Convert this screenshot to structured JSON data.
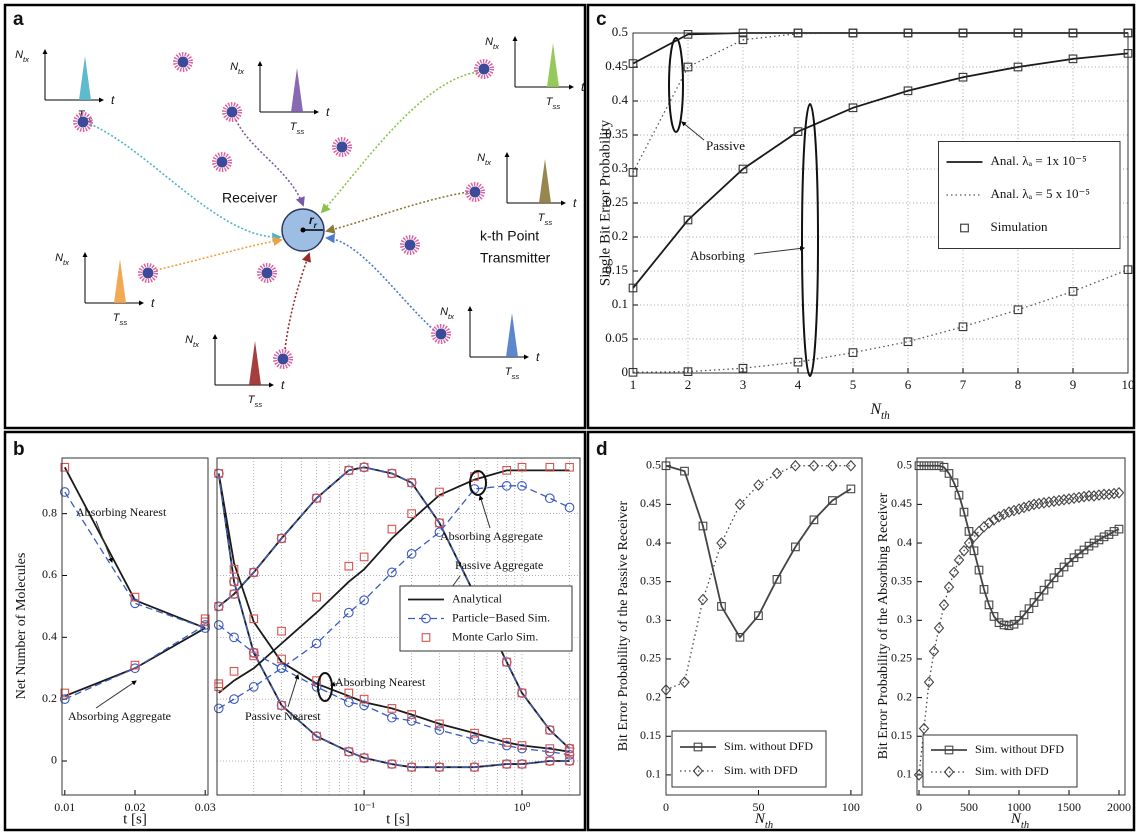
{
  "panel_labels": [
    "a",
    "b",
    "c",
    "d"
  ],
  "diagram": {
    "receiver": "Receiver",
    "radius": {
      "text": "r",
      "sub": "r"
    },
    "transmitter_label": [
      "k-th Point",
      "Transmitter"
    ],
    "transmitters": [
      {
        "color": "#4fb3c8",
        "y_label": {
          "text": "N",
          "sub": "tx"
        },
        "pulse_label": {
          "text": "T",
          "sub": "ss"
        },
        "axis_label": "t"
      },
      {
        "color": "#7a5aa8",
        "y_label": {
          "text": "N",
          "sub": "tx"
        },
        "pulse_label": {
          "text": "T",
          "sub": "ss"
        },
        "axis_label": "t"
      },
      {
        "color": "#8bc34a",
        "y_label": {
          "text": "N",
          "sub": "tx"
        },
        "pulse_label": {
          "text": "T",
          "sub": "ss"
        },
        "axis_label": "t"
      },
      {
        "color": "#8a7a3a",
        "y_label": {
          "text": "N",
          "sub": "tx"
        },
        "pulse_label": {
          "text": "T",
          "sub": "ss"
        },
        "axis_label": "t"
      },
      {
        "color": "#f0a040",
        "y_label": {
          "text": "N",
          "sub": "tx"
        },
        "pulse_label": {
          "text": "T",
          "sub": "ss"
        },
        "axis_label": "t"
      },
      {
        "color": "#9b2a2a",
        "y_label": {
          "text": "N",
          "sub": "tx"
        },
        "pulse_label": {
          "text": "T",
          "sub": "ss"
        },
        "axis_label": "t"
      },
      {
        "color": "#4a7ac8",
        "y_label": {
          "text": "N",
          "sub": "tx"
        },
        "pulse_label": {
          "text": "T",
          "sub": "ss"
        },
        "axis_label": "t"
      }
    ]
  },
  "chart_data": [
    {
      "type": "line",
      "ylabel": "Single Bit Error Probability",
      "xlabel": {
        "text": "N",
        "sub": "th"
      },
      "xlim": [
        1,
        10
      ],
      "ylim": [
        0,
        0.5
      ],
      "xticks": [
        1,
        2,
        3,
        4,
        5,
        6,
        7,
        8,
        9,
        10
      ],
      "yticks": [
        0,
        0.05,
        0.1,
        0.15,
        0.2,
        0.25,
        0.3,
        0.35,
        0.4,
        0.45,
        0.5
      ],
      "grid": true,
      "legend": "center right",
      "x": [
        1,
        2,
        3,
        4,
        5,
        6,
        7,
        8,
        9,
        10
      ],
      "series": [
        {
          "name": "Anal. λₐ = 1x 10⁻⁵",
          "color": "#1a1a1a",
          "style": "solid",
          "marker": "none",
          "lines": [
            [
              0.455,
              0.498,
              0.5,
              0.5,
              0.5,
              0.5,
              0.5,
              0.5,
              0.5,
              0.5
            ],
            [
              0.125,
              0.225,
              0.3,
              0.355,
              0.39,
              0.415,
              0.435,
              0.45,
              0.462,
              0.47
            ]
          ]
        },
        {
          "name": "Anal. λₐ = 5 x 10⁻⁵",
          "color": "#555555",
          "style": "dotted",
          "marker": "none",
          "lines": [
            [
              0.295,
              0.45,
              0.49,
              0.499,
              0.5,
              0.5,
              0.5,
              0.5,
              0.5,
              0.5
            ],
            [
              0.001,
              0.002,
              0.007,
              0.016,
              0.03,
              0.046,
              0.068,
              0.093,
              0.12,
              0.152
            ]
          ]
        },
        {
          "name": "Simulation",
          "color": "#333333",
          "style": "none",
          "marker": "square",
          "lines": [
            [
              0.455,
              0.498,
              0.5,
              0.5,
              0.5,
              0.5,
              0.5,
              0.5,
              0.5,
              0.5
            ],
            [
              0.125,
              0.225,
              0.3,
              0.355,
              0.39,
              0.415,
              0.435,
              0.45,
              0.462,
              0.47
            ],
            [
              0.295,
              0.45,
              0.49,
              0.5,
              0.5,
              0.5,
              0.5,
              0.5,
              0.5,
              0.5
            ],
            [
              0.001,
              0.002,
              0.007,
              0.016,
              0.03,
              0.046,
              0.068,
              0.093,
              0.12,
              0.152
            ]
          ]
        }
      ],
      "annotations": [
        "Passive",
        "Absorbing"
      ]
    },
    {
      "type": "line",
      "ylabel": "Net Number of  Molecules",
      "xlabel": "t [s]",
      "xlim": [
        0.0096,
        0.0304
      ],
      "ylim": [
        -0.11,
        0.98
      ],
      "xticks": [
        0.01,
        0.02,
        0.03
      ],
      "yticks": [
        0,
        0.2,
        0.4,
        0.6,
        0.8
      ],
      "grid": false,
      "x": [
        0.01,
        0.02,
        0.03
      ],
      "series": [
        {
          "color": "#1a1a1a",
          "style": "solid",
          "marker": "none",
          "lines": [
            [
              0.95,
              0.52,
              0.43
            ],
            [
              0.21,
              0.3,
              0.43
            ]
          ]
        },
        {
          "color": "#3b5bbf",
          "style": "dashed",
          "marker": "circle",
          "lines": [
            [
              0.87,
              0.51,
              0.43
            ],
            [
              0.2,
              0.3,
              0.44
            ]
          ]
        },
        {
          "color": "#d9534f",
          "style": "none",
          "marker": "square",
          "lines": [
            [
              0.95,
              0.53,
              0.46
            ],
            [
              0.22,
              0.31,
              0.45
            ]
          ]
        }
      ],
      "annotations": [
        "Absorbing Nearest",
        "Absorbing Aggregate"
      ]
    },
    {
      "type": "line",
      "xlabel": "t [s]",
      "log_x": true,
      "xlim": [
        0.0117,
        2.33
      ],
      "ylim": [
        -0.11,
        0.98
      ],
      "xticks": [
        {
          "value": 0.1,
          "label": "10⁻¹"
        },
        {
          "value": 1,
          "label": "10⁰"
        }
      ],
      "minor_xticks": [
        0.02,
        0.03,
        0.04,
        0.05,
        0.06,
        0.07,
        0.08,
        0.09,
        0.2,
        0.3,
        0.4,
        0.5,
        0.6,
        0.7,
        0.8,
        0.9,
        2
      ],
      "minor_yticks": [
        0,
        0.2,
        0.4,
        0.6,
        0.8
      ],
      "grid": true,
      "legend": "center right",
      "x": [
        0.012,
        0.015,
        0.02,
        0.03,
        0.05,
        0.08,
        0.1,
        0.15,
        0.2,
        0.3,
        0.5,
        0.8,
        1,
        1.5,
        2
      ],
      "series": [
        {
          "name": "Analytical",
          "color": "#1a1a1a",
          "style": "solid",
          "marker": "none",
          "lines": [
            [
              0.5,
              0.54,
              0.61,
              0.72,
              0.85,
              0.94,
              0.95,
              0.93,
              0.9,
              0.77,
              0.54,
              0.32,
              0.22,
              0.1,
              0.04
            ],
            [
              0.22,
              0.26,
              0.3,
              0.38,
              0.48,
              0.58,
              0.62,
              0.72,
              0.78,
              0.86,
              0.91,
              0.94,
              0.94,
              0.94,
              0.94
            ],
            [
              0.93,
              0.64,
              0.45,
              0.32,
              0.25,
              0.21,
              0.19,
              0.17,
              0.15,
              0.12,
              0.09,
              0.06,
              0.05,
              0.04,
              0.03
            ],
            [
              0.93,
              0.58,
              0.35,
              0.18,
              0.08,
              0.03,
              0.01,
              -0.01,
              -0.02,
              -0.02,
              -0.02,
              -0.01,
              -0.01,
              0,
              0
            ]
          ]
        },
        {
          "name": "Particle−Based Sim.",
          "color": "#3b5bbf",
          "style": "dashed",
          "marker": "circle",
          "lines": [
            [
              0.5,
              0.54,
              0.61,
              0.72,
              0.85,
              0.94,
              0.95,
              0.93,
              0.9,
              0.77,
              0.54,
              0.32,
              0.22,
              0.1,
              0.04
            ],
            [
              0.17,
              0.2,
              0.24,
              0.3,
              0.38,
              0.48,
              0.52,
              0.61,
              0.67,
              0.74,
              0.88,
              0.89,
              0.89,
              0.85,
              0.82
            ],
            [
              0.44,
              0.4,
              0.35,
              0.3,
              0.24,
              0.19,
              0.18,
              0.14,
              0.13,
              0.1,
              0.07,
              0.05,
              0.04,
              0.03,
              0.02
            ],
            [
              0.93,
              0.58,
              0.35,
              0.18,
              0.08,
              0.03,
              0.01,
              -0.01,
              -0.02,
              -0.02,
              -0.02,
              -0.01,
              -0.01,
              0,
              0
            ]
          ]
        },
        {
          "name": "Monte Carlo Sim.",
          "color": "#d9534f",
          "style": "none",
          "marker": "square",
          "lines": [
            [
              0.5,
              0.54,
              0.61,
              0.72,
              0.85,
              0.94,
              0.95,
              0.93,
              0.9,
              0.77,
              0.54,
              0.32,
              0.22,
              0.1,
              0.04
            ],
            [
              0.25,
              0.29,
              0.34,
              0.42,
              0.53,
              0.63,
              0.66,
              0.75,
              0.8,
              0.87,
              0.92,
              0.94,
              0.95,
              0.95,
              0.95
            ],
            [
              0.24,
              0.62,
              0.46,
              0.33,
              0.26,
              0.22,
              0.2,
              0.17,
              0.15,
              0.12,
              0.09,
              0.06,
              0.05,
              0.04,
              0.03
            ],
            [
              0.93,
              0.58,
              0.35,
              0.18,
              0.08,
              0.03,
              0.01,
              -0.01,
              -0.02,
              -0.02,
              -0.02,
              -0.01,
              -0.01,
              0,
              0
            ]
          ]
        }
      ],
      "annotations": [
        "Absorbing Aggregate",
        "Passive Aggregate",
        "Absorbing Nearest",
        "Passive Nearest"
      ]
    },
    {
      "type": "line",
      "ylabel": "Bit Error Probability of the Passive  Receiver",
      "xlabel": {
        "text": "N",
        "sub": "th"
      },
      "xlim": [
        0,
        106
      ],
      "ylim": [
        0.074,
        0.51
      ],
      "xticks": [
        0,
        50,
        100
      ],
      "yticks": [
        0.1,
        0.15,
        0.2,
        0.25,
        0.3,
        0.35,
        0.4,
        0.45,
        0.5
      ],
      "grid": false,
      "legend": "lower left",
      "x": [
        0,
        10,
        20,
        30,
        40,
        50,
        60,
        70,
        80,
        90,
        100
      ],
      "series": [
        {
          "name": "Sim. without DFD",
          "color": "#444444",
          "style": "solid",
          "marker": "square",
          "lines": [
            [
              0.5,
              0.493,
              0.422,
              0.318,
              0.278,
              0.306,
              0.353,
              0.395,
              0.43,
              0.455,
              0.47
            ]
          ]
        },
        {
          "name": "Sim. with DFD",
          "color": "#444444",
          "style": "dotted",
          "marker": "diamond",
          "lines": [
            [
              0.21,
              0.22,
              0.327,
              0.4,
              0.45,
              0.475,
              0.49,
              0.5,
              0.5,
              0.5,
              0.5
            ]
          ]
        }
      ]
    },
    {
      "type": "line",
      "ylabel": "Bit Error Probability of the Absorbing Receiver",
      "xlabel": {
        "text": "N",
        "sub": "th"
      },
      "xlim": [
        -20,
        2060
      ],
      "ylim": [
        0.074,
        0.51
      ],
      "xticks": [
        0,
        500,
        1000,
        1500,
        2000
      ],
      "yticks": [
        0.1,
        0.15,
        0.2,
        0.25,
        0.3,
        0.35,
        0.4,
        0.45,
        0.5
      ],
      "grid": false,
      "legend": "lower left",
      "x": [
        0,
        50,
        100,
        150,
        200,
        250,
        300,
        350,
        400,
        450,
        500,
        550,
        600,
        650,
        700,
        750,
        800,
        850,
        900,
        950,
        1000,
        1050,
        1100,
        1150,
        1200,
        1250,
        1300,
        1350,
        1400,
        1450,
        1500,
        1550,
        1600,
        1650,
        1700,
        1750,
        1800,
        1850,
        1900,
        1950,
        2000
      ],
      "series": [
        {
          "name": "Sim. without DFD",
          "color": "#444444",
          "style": "solid",
          "marker": "square",
          "lines": [
            [
              0.5,
              0.5,
              0.5,
              0.5,
              0.5,
              0.498,
              0.49,
              0.478,
              0.462,
              0.44,
              0.415,
              0.39,
              0.365,
              0.34,
              0.32,
              0.305,
              0.297,
              0.294,
              0.293,
              0.295,
              0.3,
              0.307,
              0.315,
              0.323,
              0.331,
              0.339,
              0.347,
              0.355,
              0.362,
              0.369,
              0.375,
              0.381,
              0.386,
              0.391,
              0.396,
              0.4,
              0.404,
              0.408,
              0.411,
              0.415,
              0.418
            ]
          ]
        },
        {
          "name": "Sim. with DFD",
          "color": "#444444",
          "style": "dotted",
          "marker": "diamond",
          "lines": [
            [
              0.1,
              0.16,
              0.22,
              0.26,
              0.29,
              0.32,
              0.343,
              0.362,
              0.378,
              0.39,
              0.4,
              0.408,
              0.415,
              0.421,
              0.426,
              0.43,
              0.434,
              0.437,
              0.44,
              0.442,
              0.444,
              0.446,
              0.448,
              0.45,
              0.451,
              0.452,
              0.453,
              0.454,
              0.455,
              0.456,
              0.457,
              0.458,
              0.459,
              0.46,
              0.461,
              0.461,
              0.462,
              0.463,
              0.463,
              0.464,
              0.465
            ]
          ]
        }
      ]
    }
  ]
}
